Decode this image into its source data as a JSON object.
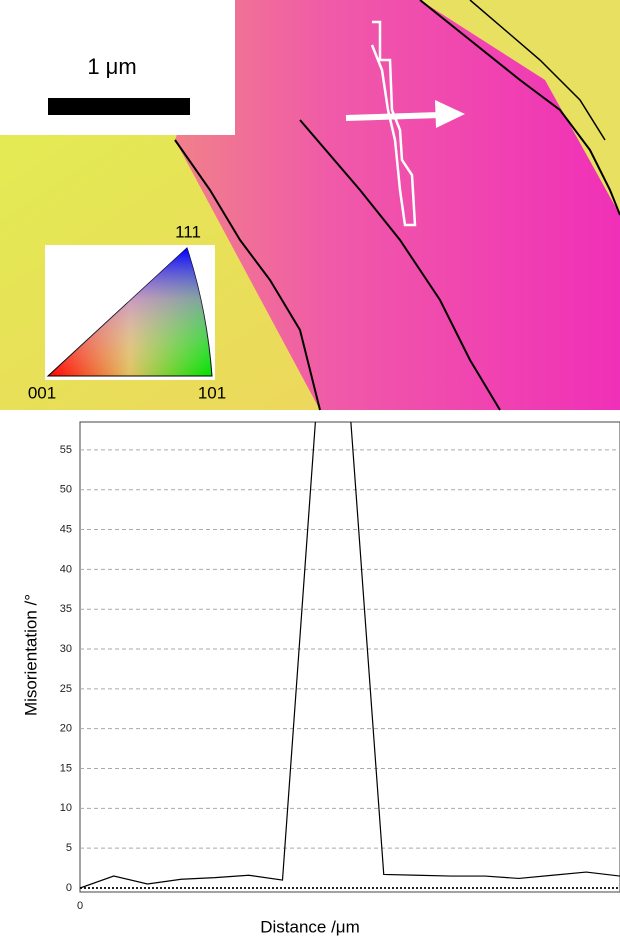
{
  "map": {
    "scale_label": "1 μm",
    "ipf_labels": [
      "111",
      "001",
      "101"
    ]
  },
  "chart_data": {
    "type": "line",
    "xlabel": "Distance /μm",
    "ylabel": "Misorientation /°",
    "x": [
      0,
      0.25,
      0.5,
      0.75,
      1.0,
      1.25,
      1.5,
      1.75,
      2.0,
      2.25,
      2.5,
      2.75,
      3.0,
      3.25,
      3.5,
      3.75,
      4.0
    ],
    "values": [
      0,
      1.5,
      0.5,
      1.1,
      1.3,
      1.6,
      1.0,
      60,
      60,
      1.7,
      1.6,
      1.5,
      1.5,
      1.2,
      1.6,
      2.0,
      1.5
    ],
    "color": "#000000",
    "xlim": [
      0,
      4.0
    ],
    "ylim": [
      0,
      58.5
    ],
    "xticks": [
      0
    ],
    "yticks": [
      0,
      5,
      10,
      15,
      20,
      25,
      30,
      35,
      40,
      45,
      50,
      55
    ],
    "grid": true
  }
}
